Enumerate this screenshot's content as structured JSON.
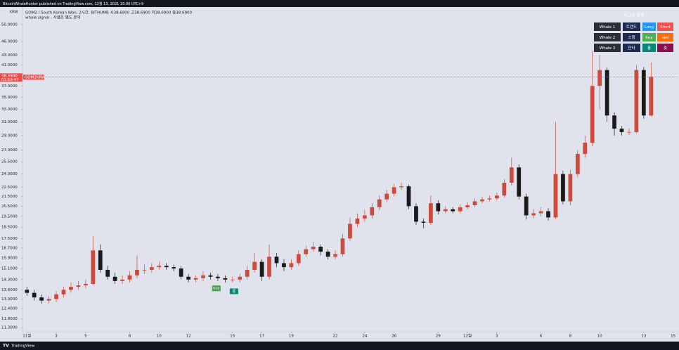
{
  "chart_data": {
    "type": "candlestick",
    "log_scale": true,
    "grid": false,
    "up_color": "#cc4b3c",
    "down_color": "#1a1a1a",
    "header": "GOM2 / South Korean Won, 2시간, BITHUMB  시38.6900  고38.6900  저38.6900  종38.6900",
    "subheader": "whale signal - 사용은 별도 문의",
    "axis_unit": "KRW",
    "last_price": {
      "value": 38.69,
      "label": "38.6900"
    },
    "countdown": "01:59:47",
    "symbol_tag": "GOM2KRW",
    "xlim": [
      -0.3,
      44.4
    ],
    "xticks": [
      {
        "value": 0,
        "label": "11월"
      },
      {
        "value": 2,
        "label": "3"
      },
      {
        "value": 4,
        "label": "5"
      },
      {
        "value": 7,
        "label": "8"
      },
      {
        "value": 9,
        "label": "10"
      },
      {
        "value": 11,
        "label": "12"
      },
      {
        "value": 14,
        "label": "15"
      },
      {
        "value": 16,
        "label": "17"
      },
      {
        "value": 18,
        "label": "19"
      },
      {
        "value": 21,
        "label": "22"
      },
      {
        "value": 23,
        "label": "24"
      },
      {
        "value": 25,
        "label": "26"
      },
      {
        "value": 28,
        "label": "29"
      },
      {
        "value": 30,
        "label": "12월"
      },
      {
        "value": 32,
        "label": "3"
      },
      {
        "value": 35,
        "label": "6"
      },
      {
        "value": 37,
        "label": "8"
      },
      {
        "value": 39,
        "label": "10"
      },
      {
        "value": 42,
        "label": "13"
      },
      {
        "value": 44,
        "label": "15"
      }
    ],
    "ylim": [
      11.07,
      54.5
    ],
    "yticks": [
      {
        "value": 11.3,
        "label": "11.3000"
      },
      {
        "value": 11.8,
        "label": "11.8000"
      },
      {
        "value": 12.4,
        "label": "12.4000"
      },
      {
        "value": 13,
        "label": "13.0000"
      },
      {
        "value": 13.6,
        "label": "13.6000"
      },
      {
        "value": 14.3,
        "label": "14.3000"
      },
      {
        "value": 15.1,
        "label": "15.1000"
      },
      {
        "value": 15.9,
        "label": "15.9000"
      },
      {
        "value": 16.7,
        "label": "16.7000"
      },
      {
        "value": 17.5,
        "label": "17.5000"
      },
      {
        "value": 18.5,
        "label": "18.5000"
      },
      {
        "value": 19.5,
        "label": "19.5000"
      },
      {
        "value": 20.5,
        "label": "20.5000"
      },
      {
        "value": 21.5,
        "label": "21.5000"
      },
      {
        "value": 22.5,
        "label": "22.5000"
      },
      {
        "value": 24,
        "label": "24.0000"
      },
      {
        "value": 25.5,
        "label": "25.5000"
      },
      {
        "value": 27,
        "label": "27.0000"
      },
      {
        "value": 29,
        "label": "29.0000"
      },
      {
        "value": 31,
        "label": "31.0000"
      },
      {
        "value": 33,
        "label": "33.0000"
      },
      {
        "value": 35,
        "label": "35.0000"
      },
      {
        "value": 37,
        "label": "37.0000"
      },
      {
        "value": 41,
        "label": "41.0000"
      },
      {
        "value": 43,
        "label": "43.0000"
      },
      {
        "value": 46,
        "label": "46.0000"
      },
      {
        "value": 50,
        "label": "50.0000"
      }
    ],
    "x": [
      0,
      0.5,
      1,
      1.5,
      2,
      2.5,
      3,
      3.5,
      4,
      4.5,
      5,
      5.5,
      6,
      6.5,
      7,
      7.5,
      8,
      8.5,
      9,
      9.5,
      10,
      10.5,
      11,
      11.5,
      12,
      12.5,
      13,
      13.5,
      14,
      14.5,
      15,
      15.5,
      16,
      16.5,
      17,
      17.5,
      18,
      18.5,
      19,
      19.5,
      20,
      20.5,
      21,
      21.5,
      22,
      22.5,
      23,
      23.5,
      24,
      24.5,
      25,
      25.5,
      26,
      26.5,
      27,
      27.5,
      28,
      28.5,
      29,
      29.5,
      30,
      30.5,
      31,
      31.5,
      32,
      32.5,
      33,
      33.5,
      34,
      34.5,
      35,
      35.5,
      36,
      36.5,
      37,
      37.5,
      38,
      38.5,
      39,
      39.5,
      40,
      40.5,
      41,
      41.5,
      42,
      42.5
    ],
    "open": [
      13.6,
      13.4,
      13.1,
      12.9,
      13.0,
      13.3,
      13.6,
      13.8,
      13.9,
      14.0,
      16.5,
      15.0,
      14.5,
      14.2,
      14.3,
      14.6,
      15.0,
      15.0,
      15.2,
      15.3,
      15.2,
      15.1,
      14.5,
      14.3,
      14.4,
      14.6,
      14.5,
      14.4,
      14.3,
      14.3,
      14.5,
      15.0,
      15.6,
      14.5,
      16.0,
      15.5,
      15.2,
      15.5,
      16.2,
      16.6,
      16.8,
      16.4,
      16.0,
      16.2,
      17.5,
      18.8,
      19.3,
      19.6,
      20.4,
      21.2,
      21.8,
      22.5,
      22.6,
      20.5,
      19.0,
      18.9,
      20.8,
      20.0,
      20.2,
      20.0,
      20.4,
      20.6,
      21.0,
      21.2,
      21.3,
      21.6,
      23.0,
      24.8,
      21.5,
      19.6,
      19.8,
      20.0,
      19.4,
      24.0,
      21.0,
      24.0,
      26.5,
      28.0,
      37.0,
      40.0,
      32.0,
      30.0,
      29.5,
      29.5,
      40.0,
      32.0
    ],
    "high": [
      13.8,
      13.6,
      13.3,
      13.2,
      13.5,
      13.8,
      14.1,
      14.2,
      14.3,
      17.7,
      17.0,
      15.3,
      14.8,
      14.6,
      14.9,
      16.1,
      15.4,
      15.5,
      15.6,
      15.5,
      15.4,
      15.3,
      14.7,
      14.6,
      14.9,
      14.8,
      14.7,
      14.6,
      14.5,
      14.7,
      15.3,
      16.3,
      15.8,
      17.0,
      16.3,
      15.8,
      15.8,
      16.5,
      16.9,
      17.2,
      17.0,
      16.6,
      16.5,
      17.9,
      19.4,
      19.8,
      20.1,
      20.8,
      21.6,
      22.2,
      22.9,
      23.0,
      22.8,
      20.8,
      19.3,
      21.6,
      21.1,
      20.5,
      20.4,
      20.7,
      20.9,
      21.3,
      21.5,
      21.6,
      21.9,
      23.4,
      26.0,
      25.2,
      21.8,
      20.2,
      20.4,
      20.3,
      31.0,
      24.4,
      24.5,
      27.0,
      29.0,
      44.0,
      43.0,
      40.5,
      32.5,
      30.4,
      30.0,
      41.0,
      40.6,
      41.5
    ],
    "low": [
      13.2,
      12.9,
      12.7,
      12.7,
      12.8,
      13.1,
      13.4,
      13.6,
      13.7,
      13.9,
      14.8,
      14.3,
      14.0,
      14.0,
      14.1,
      14.4,
      14.7,
      14.8,
      15.0,
      15.0,
      14.9,
      14.3,
      14.1,
      14.1,
      14.2,
      14.3,
      14.2,
      14.1,
      14.1,
      14.1,
      14.3,
      14.8,
      14.2,
      14.3,
      15.2,
      14.9,
      15.0,
      15.3,
      16.0,
      16.4,
      16.1,
      15.8,
      15.8,
      16.0,
      17.3,
      18.5,
      19.0,
      19.3,
      20.1,
      20.9,
      21.5,
      22.2,
      20.2,
      18.7,
      18.4,
      18.7,
      19.7,
      19.8,
      19.8,
      19.8,
      20.2,
      20.4,
      20.8,
      21.0,
      21.1,
      21.4,
      22.7,
      21.2,
      19.2,
      19.3,
      19.5,
      19.1,
      19.2,
      20.7,
      20.6,
      23.6,
      26.0,
      27.5,
      33.0,
      31.0,
      29.0,
      29.0,
      29.1,
      29.3,
      31.5,
      31.8
    ],
    "close": [
      13.4,
      13.1,
      12.9,
      13.0,
      13.3,
      13.6,
      13.8,
      13.9,
      14.0,
      16.5,
      15.0,
      14.5,
      14.2,
      14.3,
      14.6,
      15.0,
      15.0,
      15.2,
      15.3,
      15.2,
      15.1,
      14.5,
      14.3,
      14.4,
      14.6,
      14.5,
      14.4,
      14.3,
      14.3,
      14.5,
      15.0,
      15.6,
      14.5,
      16.0,
      15.5,
      15.2,
      15.5,
      16.2,
      16.6,
      16.8,
      16.4,
      16.0,
      16.2,
      17.5,
      18.8,
      19.3,
      19.6,
      20.4,
      21.2,
      21.8,
      22.5,
      22.6,
      20.5,
      19.0,
      18.9,
      20.8,
      20.0,
      20.2,
      20.0,
      20.4,
      20.6,
      21.0,
      21.2,
      21.3,
      21.6,
      23.0,
      24.8,
      21.5,
      19.6,
      19.8,
      20.0,
      19.4,
      24.0,
      21.0,
      24.0,
      26.5,
      28.0,
      37.0,
      40.0,
      32.0,
      30.0,
      29.5,
      29.5,
      40.0,
      32.0,
      38.69
    ],
    "annotations": [
      {
        "text": "buy",
        "x": 12.9,
        "y": 13.7
      },
      {
        "text": "롱",
        "x": 14.1,
        "y": 13.5
      }
    ]
  },
  "topbar": "BitcoinWhaleHunter published on TradingView.com, 12월 13, 2021 15:00 UTC+9",
  "footer": "TradingView",
  "signal_table": {
    "title": "시그널 종류",
    "rows": [
      [
        "Whale 1",
        "트렌드",
        "Long",
        "Short"
      ],
      [
        "Whale 2",
        "스윙",
        "buy",
        "sell"
      ],
      [
        "Whale 3",
        "단타",
        "롱",
        "숏"
      ]
    ]
  }
}
